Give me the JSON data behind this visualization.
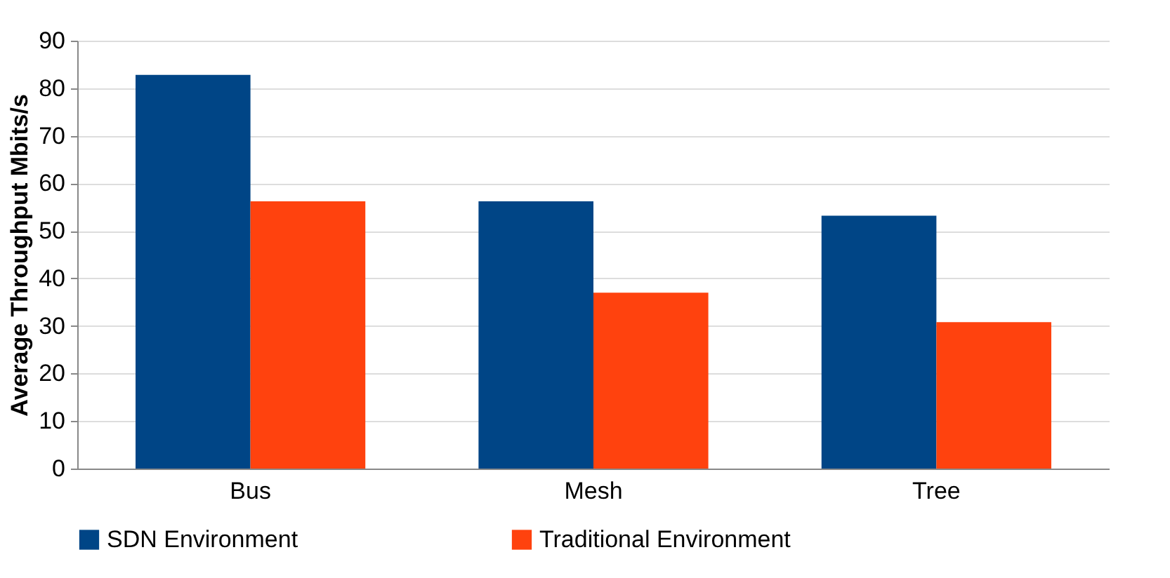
{
  "chart_data": {
    "type": "bar",
    "ylabel": "Average Throughput Mbits/s",
    "categories": [
      "Bus",
      "Mesh",
      "Tree"
    ],
    "series": [
      {
        "name": "SDN Environment",
        "color": "#004586",
        "values": [
          82.8,
          56.2,
          53.2
        ]
      },
      {
        "name": "Traditional Environment",
        "color": "#ff420e",
        "values": [
          56.2,
          37.0,
          30.8
        ]
      }
    ],
    "ylim": [
      0,
      90
    ],
    "yticks": [
      0,
      10,
      20,
      30,
      40,
      50,
      60,
      70,
      80,
      90
    ],
    "grid": "y",
    "legend": "bottom"
  }
}
